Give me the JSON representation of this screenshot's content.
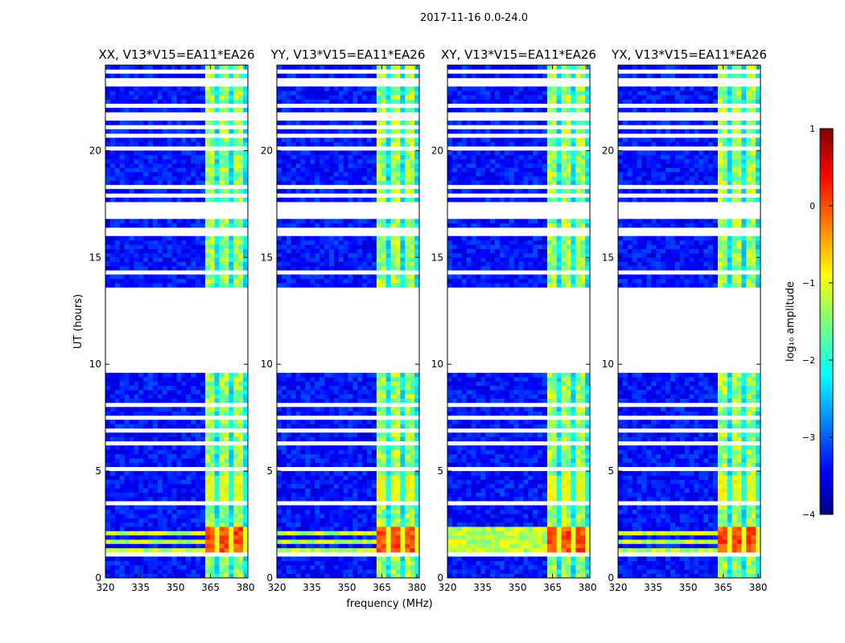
{
  "figure": {
    "suptitle": "2017-11-16 0.0-24.0",
    "xlabel": "frequency (MHz)",
    "ylabel": "UT (hours)"
  },
  "chart_data": {
    "type": "heatmap",
    "title": "2017-11-16 0.0-24.0",
    "xlabel": "frequency (MHz)",
    "ylabel": "UT (hours)",
    "xlim": [
      320,
      381
    ],
    "ylim": [
      0,
      24
    ],
    "xticks": [
      320,
      335,
      350,
      365,
      380
    ],
    "yticks": [
      0,
      5,
      10,
      15,
      20
    ],
    "panels": [
      {
        "title": "XX, V13*V15=EA11*EA26"
      },
      {
        "title": "YY, V13*V15=EA11*EA26"
      },
      {
        "title": "XY, V13*V15=EA11*EA26"
      },
      {
        "title": "YX, V13*V15=EA11*EA26"
      }
    ],
    "colorbar": {
      "label": "log₁₀ amplitude",
      "range": [
        -4,
        1
      ],
      "ticks": [
        "1",
        "0",
        "−1",
        "−2",
        "−3",
        "−4"
      ],
      "colormap": "jet"
    },
    "data_gaps_hours": [
      [
        9.6,
        13.7
      ],
      [
        16.8,
        17.6
      ]
    ],
    "bright_band_MHz": [
      362,
      381
    ],
    "bright_band_peak_log_amp": 0.3,
    "background_log_amp": -3.3,
    "rfi_burst_hours": [
      1.3,
      2.4
    ]
  }
}
